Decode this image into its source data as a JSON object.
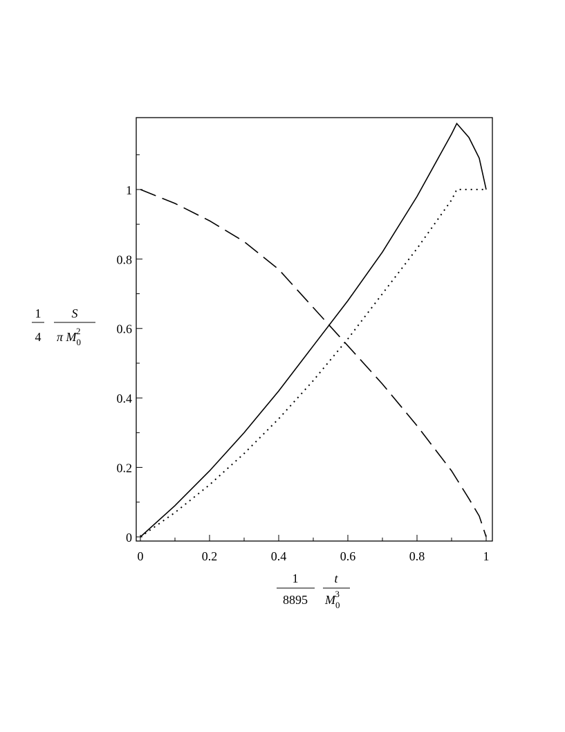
{
  "chart_data": {
    "type": "line",
    "x_label": {
      "coefficient": {
        "numerator": "1",
        "denominator": "8895"
      },
      "fraction": {
        "numerator": "t",
        "denominator": {
          "base": "M",
          "sub": "0",
          "sup": "3"
        }
      }
    },
    "y_label": {
      "coefficient": {
        "numerator": "1",
        "denominator": "4"
      },
      "fraction": {
        "numerator": "S",
        "denominator": {
          "base": "π M",
          "sub": "0",
          "sup": "2"
        }
      }
    },
    "xlim": [
      -0.012,
      1.018
    ],
    "ylim": [
      -0.012,
      1.207
    ],
    "xticks": [
      0,
      0.2,
      0.4,
      0.6,
      0.8,
      1
    ],
    "yticks": [
      0,
      0.2,
      0.4,
      0.6,
      0.8,
      1
    ],
    "xminorticks": [
      0.1,
      0.3,
      0.5,
      0.7,
      0.9
    ],
    "yminorticks": [
      0.1,
      0.3,
      0.5,
      0.7,
      0.9,
      1.1
    ],
    "series": [
      {
        "color": "#000000",
        "style": "solid",
        "x": [
          0,
          0.1,
          0.2,
          0.3,
          0.4,
          0.5,
          0.6,
          0.7,
          0.8,
          0.9,
          0.915,
          0.95,
          0.98,
          1.0
        ],
        "values": [
          0,
          0.09,
          0.19,
          0.3,
          0.42,
          0.55,
          0.68,
          0.82,
          0.98,
          1.16,
          1.19,
          1.15,
          1.09,
          1.0
        ]
      },
      {
        "color": "#000000",
        "style": "dot",
        "x": [
          0,
          0.1,
          0.2,
          0.3,
          0.4,
          0.5,
          0.6,
          0.7,
          0.8,
          0.9,
          0.915,
          1.0
        ],
        "values": [
          0,
          0.07,
          0.15,
          0.24,
          0.34,
          0.45,
          0.57,
          0.7,
          0.83,
          0.97,
          1.0,
          1.0
        ]
      },
      {
        "color": "#000000",
        "style": "dash",
        "x": [
          0,
          0.1,
          0.2,
          0.3,
          0.4,
          0.5,
          0.6,
          0.7,
          0.8,
          0.9,
          0.95,
          0.98,
          1.0
        ],
        "values": [
          1,
          0.96,
          0.91,
          0.85,
          0.77,
          0.66,
          0.55,
          0.44,
          0.32,
          0.19,
          0.11,
          0.06,
          0
        ]
      }
    ]
  }
}
